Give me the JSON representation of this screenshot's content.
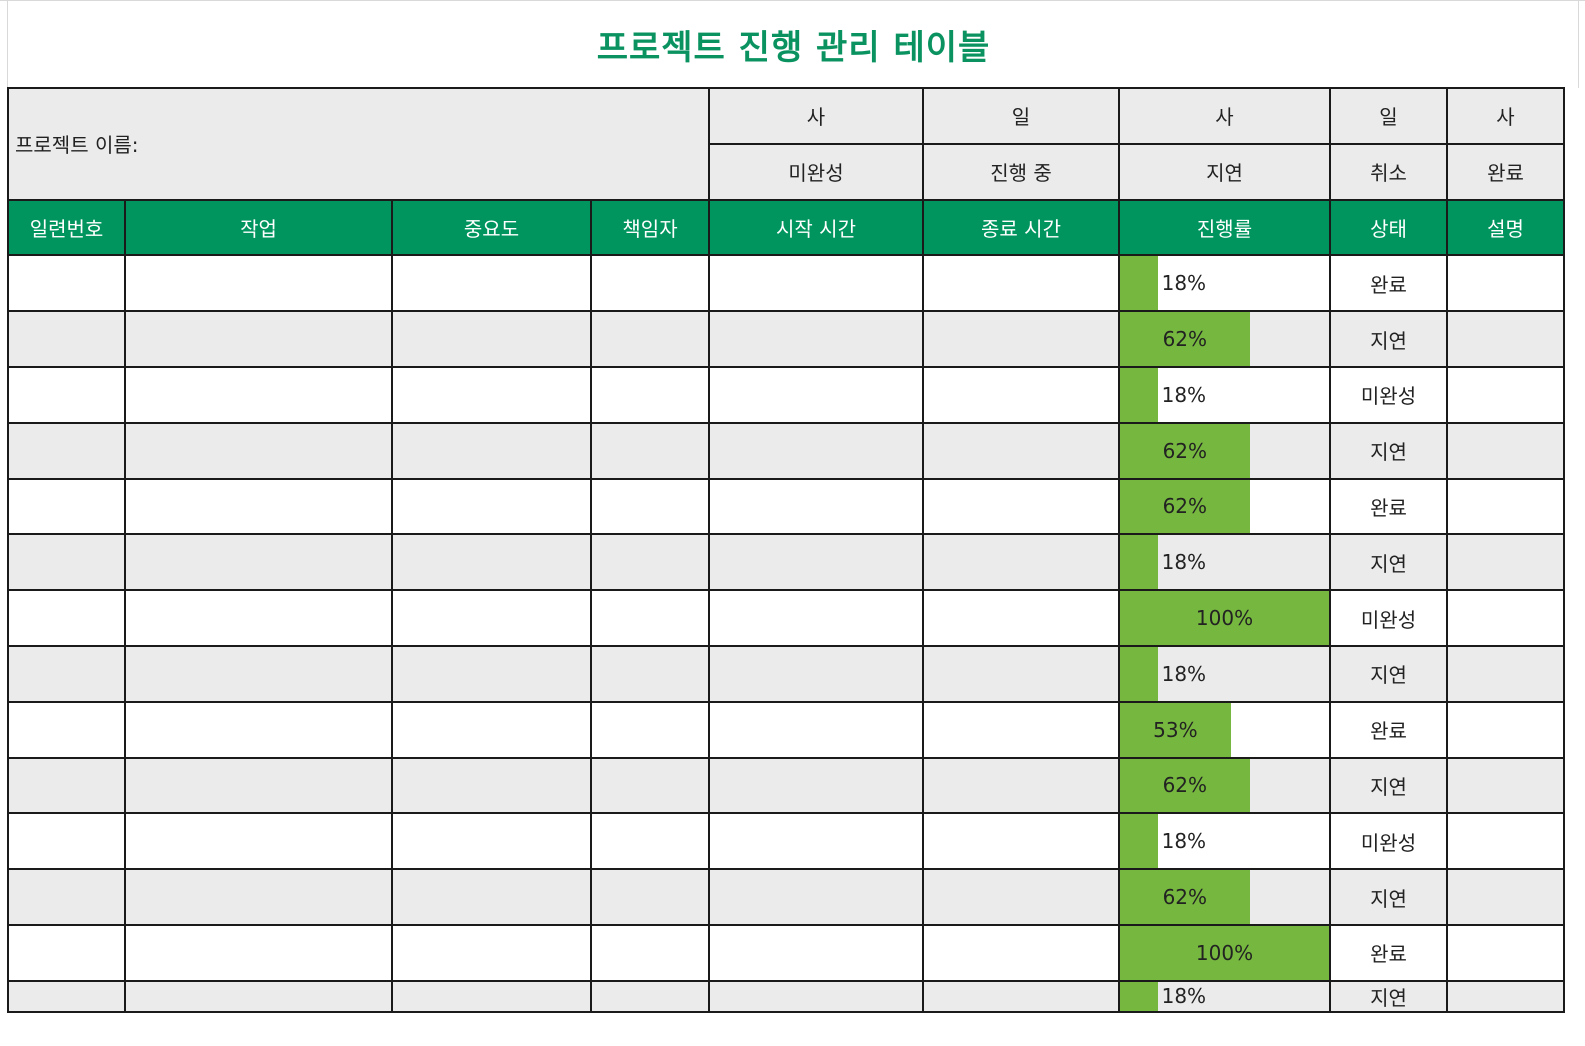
{
  "title": "프로젝트 진행 관리 테이블",
  "project_label": "프로젝트 이름:",
  "legend": {
    "icons": [
      "사",
      "일",
      "사",
      "일",
      "사"
    ],
    "statuses": [
      "미완성",
      "진행 중",
      "지연",
      "취소",
      "완료"
    ]
  },
  "headers": [
    "일련번호",
    "작업",
    "중요도",
    "책임자",
    "시작 시간",
    "종료 시간",
    "진행률",
    "상태",
    "설명"
  ],
  "rows": [
    {
      "progress": 0.18,
      "progress_label": "18%",
      "status": "완료"
    },
    {
      "progress": 0.62,
      "progress_label": "62%",
      "status": "지연"
    },
    {
      "progress": 0.18,
      "progress_label": "18%",
      "status": "미완성"
    },
    {
      "progress": 0.62,
      "progress_label": "62%",
      "status": "지연"
    },
    {
      "progress": 0.62,
      "progress_label": "62%",
      "status": "완료"
    },
    {
      "progress": 0.18,
      "progress_label": "18%",
      "status": "지연"
    },
    {
      "progress": 1.0,
      "progress_label": "100%",
      "status": "미완성"
    },
    {
      "progress": 0.18,
      "progress_label": "18%",
      "status": "지연"
    },
    {
      "progress": 0.53,
      "progress_label": "53%",
      "status": "완료"
    },
    {
      "progress": 0.62,
      "progress_label": "62%",
      "status": "지연"
    },
    {
      "progress": 0.18,
      "progress_label": "18%",
      "status": "미완성"
    },
    {
      "progress": 0.62,
      "progress_label": "62%",
      "status": "지연"
    },
    {
      "progress": 1.0,
      "progress_label": "100%",
      "status": "완료"
    },
    {
      "progress": 0.18,
      "progress_label": "18%",
      "status": "지연"
    }
  ],
  "colors": {
    "title": "#0a9360",
    "header_bg": "#00955f",
    "progress_bar": "#76b73f",
    "row_alt": "#ebebeb"
  }
}
